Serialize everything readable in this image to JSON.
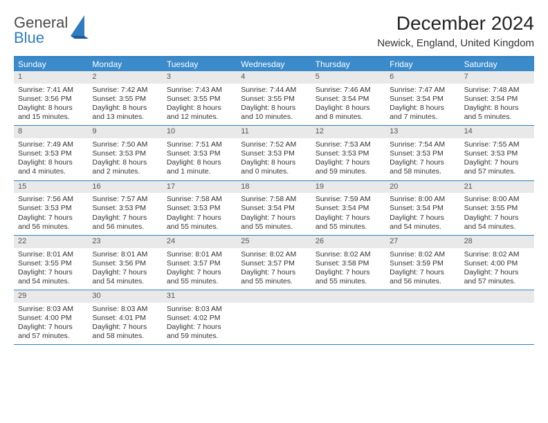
{
  "logo": {
    "word1": "General",
    "word2": "Blue"
  },
  "title": "December 2024",
  "location": "Newick, England, United Kingdom",
  "accent_color": "#3b8bca",
  "border_color": "#2f7dc0",
  "daynum_bg": "#e9e9e9",
  "day_names": [
    "Sunday",
    "Monday",
    "Tuesday",
    "Wednesday",
    "Thursday",
    "Friday",
    "Saturday"
  ],
  "weeks": [
    [
      {
        "n": "1",
        "sunrise": "Sunrise: 7:41 AM",
        "sunset": "Sunset: 3:56 PM",
        "d1": "Daylight: 8 hours",
        "d2": "and 15 minutes."
      },
      {
        "n": "2",
        "sunrise": "Sunrise: 7:42 AM",
        "sunset": "Sunset: 3:55 PM",
        "d1": "Daylight: 8 hours",
        "d2": "and 13 minutes."
      },
      {
        "n": "3",
        "sunrise": "Sunrise: 7:43 AM",
        "sunset": "Sunset: 3:55 PM",
        "d1": "Daylight: 8 hours",
        "d2": "and 12 minutes."
      },
      {
        "n": "4",
        "sunrise": "Sunrise: 7:44 AM",
        "sunset": "Sunset: 3:55 PM",
        "d1": "Daylight: 8 hours",
        "d2": "and 10 minutes."
      },
      {
        "n": "5",
        "sunrise": "Sunrise: 7:46 AM",
        "sunset": "Sunset: 3:54 PM",
        "d1": "Daylight: 8 hours",
        "d2": "and 8 minutes."
      },
      {
        "n": "6",
        "sunrise": "Sunrise: 7:47 AM",
        "sunset": "Sunset: 3:54 PM",
        "d1": "Daylight: 8 hours",
        "d2": "and 7 minutes."
      },
      {
        "n": "7",
        "sunrise": "Sunrise: 7:48 AM",
        "sunset": "Sunset: 3:54 PM",
        "d1": "Daylight: 8 hours",
        "d2": "and 5 minutes."
      }
    ],
    [
      {
        "n": "8",
        "sunrise": "Sunrise: 7:49 AM",
        "sunset": "Sunset: 3:53 PM",
        "d1": "Daylight: 8 hours",
        "d2": "and 4 minutes."
      },
      {
        "n": "9",
        "sunrise": "Sunrise: 7:50 AM",
        "sunset": "Sunset: 3:53 PM",
        "d1": "Daylight: 8 hours",
        "d2": "and 2 minutes."
      },
      {
        "n": "10",
        "sunrise": "Sunrise: 7:51 AM",
        "sunset": "Sunset: 3:53 PM",
        "d1": "Daylight: 8 hours",
        "d2": "and 1 minute."
      },
      {
        "n": "11",
        "sunrise": "Sunrise: 7:52 AM",
        "sunset": "Sunset: 3:53 PM",
        "d1": "Daylight: 8 hours",
        "d2": "and 0 minutes."
      },
      {
        "n": "12",
        "sunrise": "Sunrise: 7:53 AM",
        "sunset": "Sunset: 3:53 PM",
        "d1": "Daylight: 7 hours",
        "d2": "and 59 minutes."
      },
      {
        "n": "13",
        "sunrise": "Sunrise: 7:54 AM",
        "sunset": "Sunset: 3:53 PM",
        "d1": "Daylight: 7 hours",
        "d2": "and 58 minutes."
      },
      {
        "n": "14",
        "sunrise": "Sunrise: 7:55 AM",
        "sunset": "Sunset: 3:53 PM",
        "d1": "Daylight: 7 hours",
        "d2": "and 57 minutes."
      }
    ],
    [
      {
        "n": "15",
        "sunrise": "Sunrise: 7:56 AM",
        "sunset": "Sunset: 3:53 PM",
        "d1": "Daylight: 7 hours",
        "d2": "and 56 minutes."
      },
      {
        "n": "16",
        "sunrise": "Sunrise: 7:57 AM",
        "sunset": "Sunset: 3:53 PM",
        "d1": "Daylight: 7 hours",
        "d2": "and 56 minutes."
      },
      {
        "n": "17",
        "sunrise": "Sunrise: 7:58 AM",
        "sunset": "Sunset: 3:53 PM",
        "d1": "Daylight: 7 hours",
        "d2": "and 55 minutes."
      },
      {
        "n": "18",
        "sunrise": "Sunrise: 7:58 AM",
        "sunset": "Sunset: 3:54 PM",
        "d1": "Daylight: 7 hours",
        "d2": "and 55 minutes."
      },
      {
        "n": "19",
        "sunrise": "Sunrise: 7:59 AM",
        "sunset": "Sunset: 3:54 PM",
        "d1": "Daylight: 7 hours",
        "d2": "and 55 minutes."
      },
      {
        "n": "20",
        "sunrise": "Sunrise: 8:00 AM",
        "sunset": "Sunset: 3:54 PM",
        "d1": "Daylight: 7 hours",
        "d2": "and 54 minutes."
      },
      {
        "n": "21",
        "sunrise": "Sunrise: 8:00 AM",
        "sunset": "Sunset: 3:55 PM",
        "d1": "Daylight: 7 hours",
        "d2": "and 54 minutes."
      }
    ],
    [
      {
        "n": "22",
        "sunrise": "Sunrise: 8:01 AM",
        "sunset": "Sunset: 3:55 PM",
        "d1": "Daylight: 7 hours",
        "d2": "and 54 minutes."
      },
      {
        "n": "23",
        "sunrise": "Sunrise: 8:01 AM",
        "sunset": "Sunset: 3:56 PM",
        "d1": "Daylight: 7 hours",
        "d2": "and 54 minutes."
      },
      {
        "n": "24",
        "sunrise": "Sunrise: 8:01 AM",
        "sunset": "Sunset: 3:57 PM",
        "d1": "Daylight: 7 hours",
        "d2": "and 55 minutes."
      },
      {
        "n": "25",
        "sunrise": "Sunrise: 8:02 AM",
        "sunset": "Sunset: 3:57 PM",
        "d1": "Daylight: 7 hours",
        "d2": "and 55 minutes."
      },
      {
        "n": "26",
        "sunrise": "Sunrise: 8:02 AM",
        "sunset": "Sunset: 3:58 PM",
        "d1": "Daylight: 7 hours",
        "d2": "and 55 minutes."
      },
      {
        "n": "27",
        "sunrise": "Sunrise: 8:02 AM",
        "sunset": "Sunset: 3:59 PM",
        "d1": "Daylight: 7 hours",
        "d2": "and 56 minutes."
      },
      {
        "n": "28",
        "sunrise": "Sunrise: 8:02 AM",
        "sunset": "Sunset: 4:00 PM",
        "d1": "Daylight: 7 hours",
        "d2": "and 57 minutes."
      }
    ],
    [
      {
        "n": "29",
        "sunrise": "Sunrise: 8:03 AM",
        "sunset": "Sunset: 4:00 PM",
        "d1": "Daylight: 7 hours",
        "d2": "and 57 minutes."
      },
      {
        "n": "30",
        "sunrise": "Sunrise: 8:03 AM",
        "sunset": "Sunset: 4:01 PM",
        "d1": "Daylight: 7 hours",
        "d2": "and 58 minutes."
      },
      {
        "n": "31",
        "sunrise": "Sunrise: 8:03 AM",
        "sunset": "Sunset: 4:02 PM",
        "d1": "Daylight: 7 hours",
        "d2": "and 59 minutes."
      },
      {
        "n": "",
        "sunrise": "",
        "sunset": "",
        "d1": "",
        "d2": "",
        "empty": true
      },
      {
        "n": "",
        "sunrise": "",
        "sunset": "",
        "d1": "",
        "d2": "",
        "empty": true
      },
      {
        "n": "",
        "sunrise": "",
        "sunset": "",
        "d1": "",
        "d2": "",
        "empty": true
      },
      {
        "n": "",
        "sunrise": "",
        "sunset": "",
        "d1": "",
        "d2": "",
        "empty": true
      }
    ]
  ]
}
